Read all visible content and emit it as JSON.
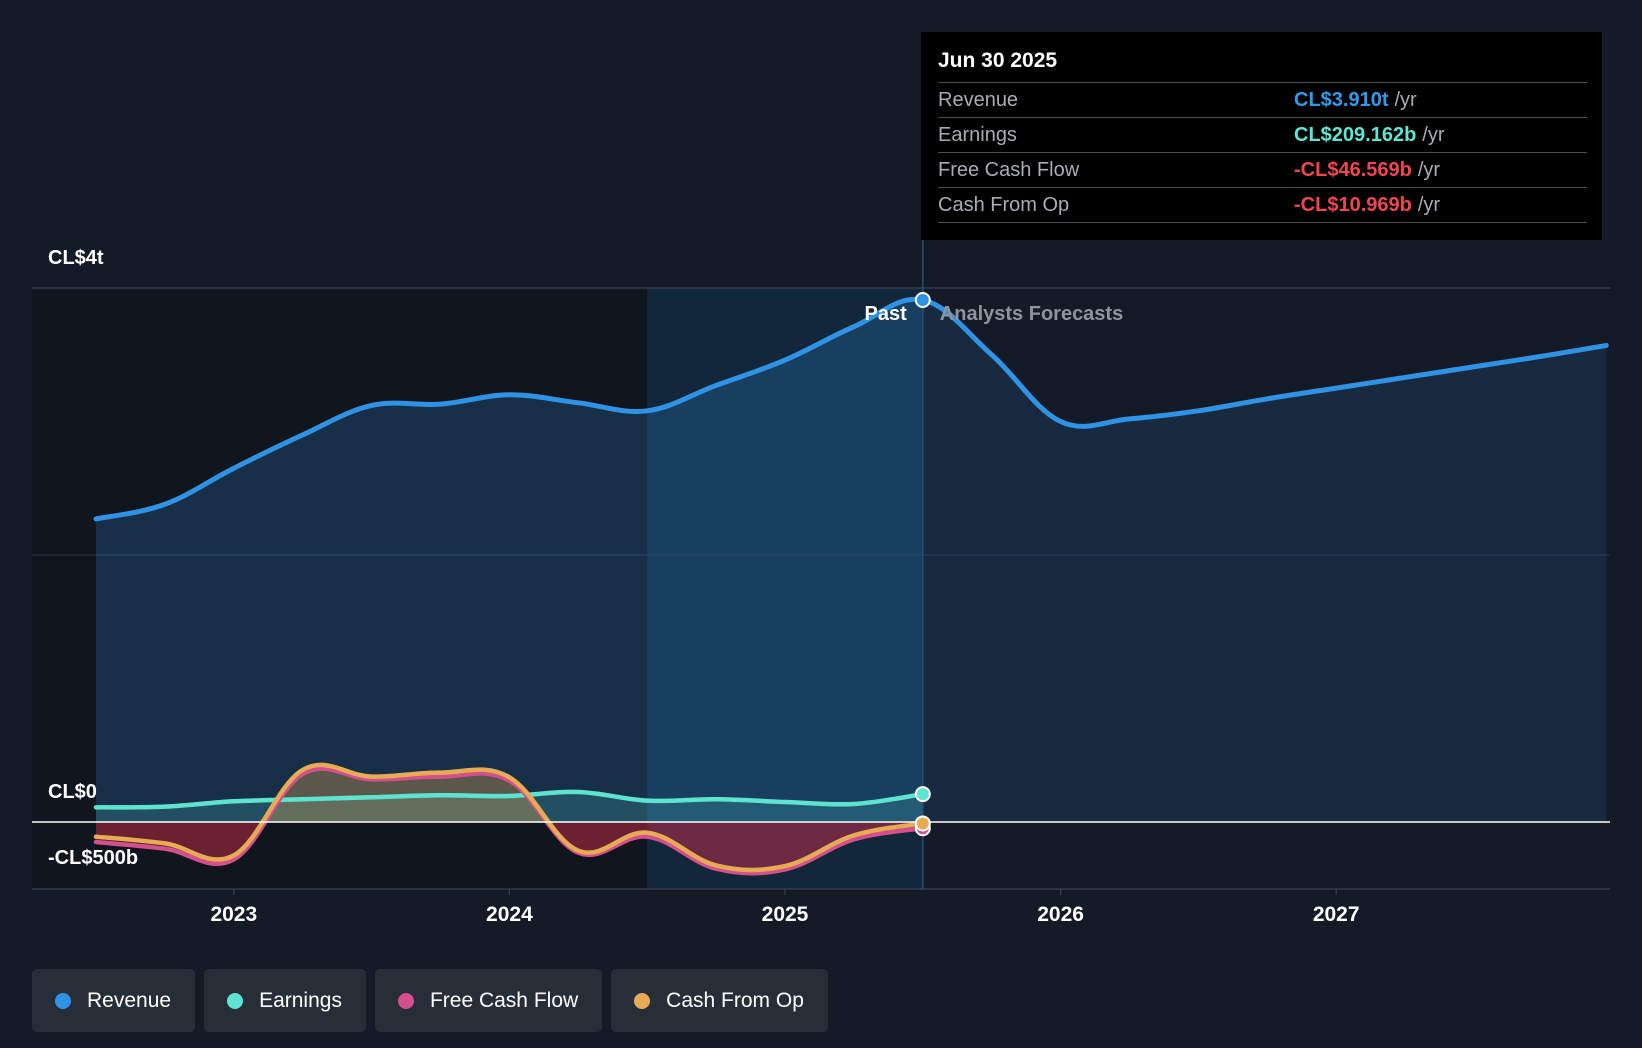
{
  "tooltip": {
    "date": "Jun 30 2025",
    "rows": [
      {
        "label": "Revenue",
        "value": "CL$3.910t",
        "unit": "/yr",
        "color": "#2f9bea"
      },
      {
        "label": "Earnings",
        "value": "CL$209.162b",
        "unit": "/yr",
        "color": "#5fe6d2"
      },
      {
        "label": "Free Cash Flow",
        "value": "-CL$46.569b",
        "unit": "/yr",
        "color": "#f0464f"
      },
      {
        "label": "Cash From Op",
        "value": "-CL$10.969b",
        "unit": "/yr",
        "color": "#f0464f"
      }
    ]
  },
  "legend": [
    {
      "label": "Revenue",
      "color": "#2f92e4"
    },
    {
      "label": "Earnings",
      "color": "#5fe3d1"
    },
    {
      "label": "Free Cash Flow",
      "color": "#d4508c"
    },
    {
      "label": "Cash From Op",
      "color": "#e8ab55"
    }
  ],
  "chart_data": {
    "type": "line",
    "title": "",
    "y_axis_labels": [
      "CL$4t",
      "CL$0",
      "-CL$500b"
    ],
    "y_label_values": [
      4000,
      0,
      -500
    ],
    "ylim": [
      -500,
      4000
    ],
    "xlim": [
      2022.5,
      2027.98
    ],
    "x_ticks": [
      2023,
      2024,
      2025,
      2026,
      2027
    ],
    "x_tick_labels": [
      "2023",
      "2024",
      "2025",
      "2026",
      "2027"
    ],
    "past_label": "Past",
    "forecast_label": "Analysts Forecasts",
    "past_end_x": 2025.5,
    "highlight_start_x": 2024.5,
    "series": [
      {
        "name": "Revenue",
        "color": "#2f92e4",
        "x": [
          2022.5,
          2022.75,
          2023.0,
          2023.25,
          2023.5,
          2023.75,
          2024.0,
          2024.25,
          2024.5,
          2024.75,
          2025.0,
          2025.25,
          2025.5,
          2025.75,
          2026.0,
          2026.25,
          2026.5,
          2026.75,
          2027.0,
          2027.25,
          2027.5,
          2027.75,
          2027.98
        ],
        "values": [
          2270,
          2380,
          2650,
          2900,
          3120,
          3130,
          3200,
          3140,
          3080,
          3270,
          3460,
          3710,
          3910,
          3500,
          3000,
          3020,
          3080,
          3170,
          3250,
          3330,
          3410,
          3490,
          3570
        ]
      },
      {
        "name": "Earnings",
        "color": "#5fe3d1",
        "x": [
          2022.5,
          2022.75,
          2023.0,
          2023.25,
          2023.5,
          2023.75,
          2024.0,
          2024.25,
          2024.5,
          2024.75,
          2025.0,
          2025.25,
          2025.5
        ],
        "values": [
          110,
          115,
          155,
          170,
          185,
          200,
          195,
          225,
          160,
          170,
          150,
          135,
          209
        ]
      },
      {
        "name": "Free Cash Flow",
        "color": "#d4508c",
        "x": [
          2022.5,
          2022.75,
          2023.0,
          2023.25,
          2023.5,
          2023.75,
          2024.0,
          2024.25,
          2024.5,
          2024.75,
          2025.0,
          2025.25,
          2025.5
        ],
        "values": [
          -150,
          -200,
          -280,
          360,
          320,
          340,
          310,
          -230,
          -110,
          -350,
          -355,
          -130,
          -47
        ]
      },
      {
        "name": "Cash From Op",
        "color": "#e8ab55",
        "x": [
          2022.5,
          2022.75,
          2023.0,
          2023.25,
          2023.5,
          2023.75,
          2024.0,
          2024.25,
          2024.5,
          2024.75,
          2025.0,
          2025.25,
          2025.5
        ],
        "values": [
          -110,
          -160,
          -250,
          390,
          340,
          370,
          335,
          -215,
          -80,
          -325,
          -330,
          -100,
          -11
        ]
      }
    ]
  }
}
